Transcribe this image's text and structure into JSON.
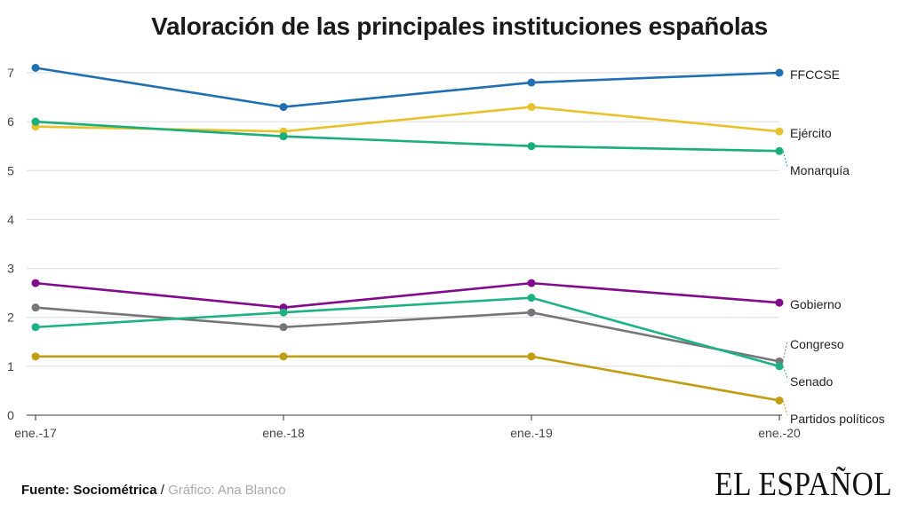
{
  "chart_data": {
    "type": "line",
    "title": "Valoración de las principales instituciones españolas",
    "xlabel": "",
    "ylabel": "",
    "categories": [
      "ene.-17",
      "ene.-18",
      "ene.-19",
      "ene.-20"
    ],
    "ylim": [
      0,
      7
    ],
    "yticks": [
      0,
      1,
      2,
      3,
      4,
      5,
      6,
      7
    ],
    "grid": true,
    "legend": "direct labels at right",
    "series": [
      {
        "name": "FFCCSE",
        "color": "#1f6fb2",
        "values": [
          7.1,
          6.3,
          6.8,
          7.0
        ]
      },
      {
        "name": "Ejército",
        "color": "#e8c22c",
        "values": [
          5.9,
          5.8,
          6.3,
          5.8
        ]
      },
      {
        "name": "Monarquía",
        "color": "#1aae7a",
        "values": [
          6.0,
          5.7,
          5.5,
          5.4
        ]
      },
      {
        "name": "Gobierno",
        "color": "#820a8c",
        "values": [
          2.7,
          2.2,
          2.7,
          2.3
        ]
      },
      {
        "name": "Congreso",
        "color": "#76767a",
        "values": [
          2.2,
          1.8,
          2.1,
          1.1
        ]
      },
      {
        "name": "Senado",
        "color": "#1db284",
        "values": [
          1.8,
          2.1,
          2.4,
          1.0
        ]
      },
      {
        "name": "Partidos políticos",
        "color": "#c29d14",
        "values": [
          1.2,
          1.2,
          1.2,
          0.3
        ]
      }
    ]
  },
  "footer": {
    "source_label": "Fuente:",
    "source": "Sociométrica",
    "separator": "/",
    "credit": "Gráfico: Ana Blanco"
  },
  "brand": "EL ESPAÑOL"
}
